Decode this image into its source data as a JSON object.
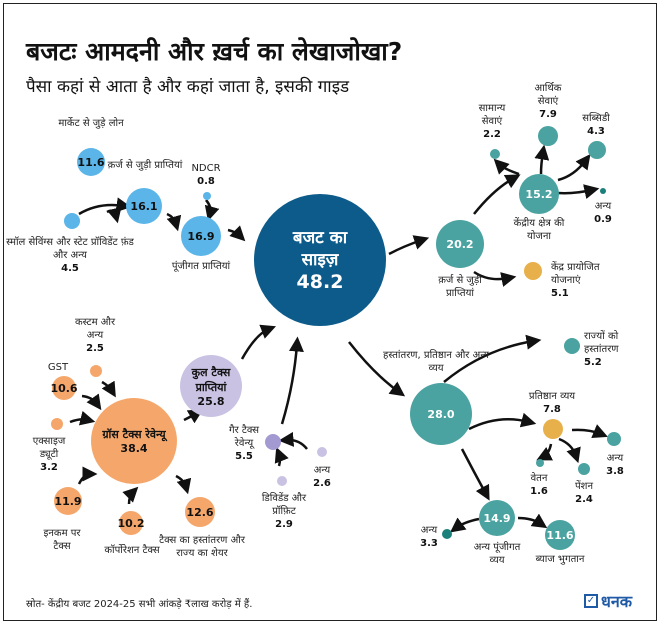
{
  "title": "बजटः आमदनी और ख़र्च का लेखाजोखा?",
  "subtitle": "पैसा कहां से आता है और कहां जाता है, इसकी गाइड",
  "colors": {
    "budget": "#0d5b8a",
    "receipts": "#5bb5e8",
    "spend": "#4aa3a0",
    "spend_dark": "#1b7f7a",
    "highlight": "#e8b04a",
    "tax": "#f5a76b",
    "tax_total": "#c9c2e2",
    "non_tax": "#a49ad2"
  },
  "center": {
    "label": "बजट का साइज़",
    "value": "48.2"
  },
  "receipts": {
    "market_loans": {
      "label": "मार्केट से जुड़े लोन",
      "value": "11.6"
    },
    "small_savings": {
      "label": "स्मॉल सेविंग्स और स्टेट प्रॉविडेंट फ़ंड और अन्य",
      "value": "4.5"
    },
    "debt_receipts": {
      "label": "क़र्ज से जुड़ी प्राप्तियां",
      "value": "16.1"
    },
    "ndcr": {
      "label": "NDCR",
      "value": "0.8"
    },
    "capital_receipts": {
      "label": "पूंजीगत प्राप्तियां",
      "value": "16.9"
    },
    "gross_tax": {
      "label": "ग्रॉस टैक्स रेवेन्यू",
      "value": "38.4"
    },
    "customs": {
      "label": "कस्टम और अन्य",
      "value": "2.5"
    },
    "gst": {
      "label": "GST",
      "value": "10.6"
    },
    "excise": {
      "label": "एक्साइज ड्यूटी",
      "value": "3.2"
    },
    "income_tax": {
      "label": "इनकम पर टैक्स",
      "value": "11.9"
    },
    "corporation_tax": {
      "label": "कॉर्पोरेशन टैक्स",
      "value": "10.2"
    },
    "tax_transfer": {
      "label": "टैक्स का हस्तांतरण और राज्य का शेयर",
      "value": "12.6"
    },
    "total_tax": {
      "label": "कुल टैक्स प्राप्तियां",
      "value": "25.8"
    },
    "non_tax": {
      "label": "गैर टैक्स रेवेन्यू",
      "value": "5.5"
    },
    "non_tax_other": {
      "label": "अन्य",
      "value": "2.6"
    },
    "dividend": {
      "label": "डिविडेंड और प्रॉफ़िट",
      "value": "2.9"
    }
  },
  "spending": {
    "debt_related": {
      "label": "क़र्ज से जुड़ी प्राप्तियां",
      "value": "20.2"
    },
    "central_schemes": {
      "label": "केंद्रीय क्षेत्र की योजना",
      "value": "15.2"
    },
    "general_services": {
      "label": "सामान्य सेवाएं",
      "value": "2.2"
    },
    "economic_services": {
      "label": "आर्थिक सेवाएं",
      "value": "7.9"
    },
    "subsidy": {
      "label": "सब्सिडी",
      "value": "4.3"
    },
    "schemes_other": {
      "label": "अन्य",
      "value": "0.9"
    },
    "sponsored_schemes": {
      "label": "केंद्र प्रायोजित योजनाएं",
      "value": "5.1"
    },
    "transfers": {
      "label": "हस्तांतरण, प्रतिष्ठान और अन्य व्यय",
      "value": "28.0"
    },
    "state_transfers": {
      "label": "राज्यों को हस्तांतरण",
      "value": "5.2"
    },
    "establishment": {
      "label": "प्रतिष्ठान व्यय",
      "value": "7.8"
    },
    "est_other": {
      "label": "अन्य",
      "value": "3.8"
    },
    "salary": {
      "label": "वेतन",
      "value": "1.6"
    },
    "pension": {
      "label": "पेंशन",
      "value": "2.4"
    },
    "other_capital": {
      "label": "अन्य पूंजीगत व्यय",
      "value": "14.9"
    },
    "cap_other": {
      "label": "अन्य",
      "value": "3.3"
    },
    "interest": {
      "label": "ब्याज भुगतान",
      "value": "11.6"
    }
  },
  "source": "स्रोत- केंद्रीय बजट 2024-25 सभी आंकड़े ₹लाख करोड़ में हैं.",
  "logo": "धनक"
}
